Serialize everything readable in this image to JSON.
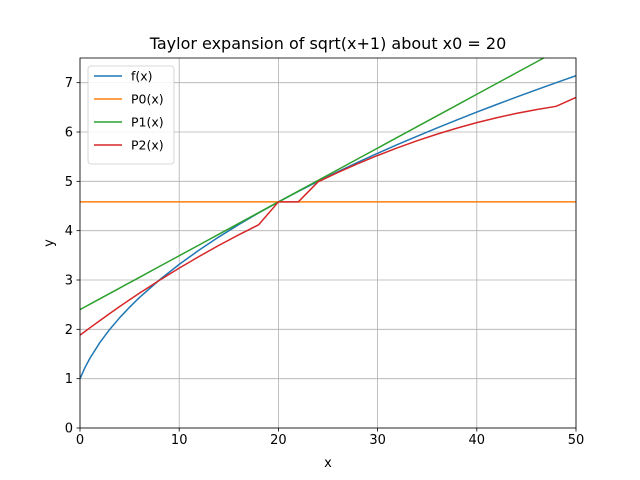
{
  "chart_data": {
    "type": "line",
    "title": "Taylor expansion of sqrt(x+1) about x0 = 20",
    "xlabel": "x",
    "ylabel": "y",
    "xlim": [
      0,
      50
    ],
    "ylim": [
      0,
      7.5
    ],
    "x_ticks": [
      "0",
      "10",
      "20",
      "30",
      "40",
      "50"
    ],
    "y_ticks": [
      "0",
      "1",
      "2",
      "3",
      "4",
      "5",
      "6",
      "7"
    ],
    "grid": true,
    "legend_position": "upper-left",
    "x": [
      0,
      0.5,
      1,
      2,
      3,
      4,
      5,
      6,
      8,
      10,
      12,
      14,
      16,
      18,
      20,
      22,
      24,
      26,
      28,
      30,
      32,
      34,
      36,
      38,
      40,
      42,
      44,
      46,
      48,
      50
    ],
    "series": [
      {
        "name": "f(x)",
        "color": "#1f77b4",
        "values": [
          1.0,
          1.2247,
          1.4142,
          1.7321,
          2.0,
          2.2361,
          2.4495,
          2.6458,
          3.0,
          3.3166,
          3.6056,
          3.873,
          4.1231,
          4.3589,
          4.5826,
          4.7958,
          5.0,
          5.1962,
          5.3852,
          5.5678,
          5.7446,
          5.9161,
          6.0828,
          6.245,
          6.4031,
          6.5574,
          6.7082,
          6.8557,
          7.0,
          7.1414
        ]
      },
      {
        "name": "P0(x)",
        "color": "#ff7f0e",
        "values": [
          4.5826,
          4.5826,
          4.5826,
          4.5826,
          4.5826,
          4.5826,
          4.5826,
          4.5826,
          4.5826,
          4.5826,
          4.5826,
          4.5826,
          4.5826,
          4.5826,
          4.5826,
          4.5826,
          4.5826,
          4.5826,
          4.5826,
          4.5826,
          4.5826,
          4.5826,
          4.5826,
          4.5826,
          4.5826,
          4.5826,
          4.5826,
          4.5826,
          4.5826,
          4.5826
        ]
      },
      {
        "name": "P1(x)",
        "color": "#2ca02c",
        "values": [
          2.4004,
          2.4549,
          2.5095,
          2.6186,
          2.7277,
          2.8368,
          2.9459,
          3.055,
          3.2732,
          3.4915,
          3.7097,
          3.9279,
          4.1461,
          4.3643,
          4.5826,
          4.8008,
          5.019,
          5.2372,
          5.4554,
          5.6736,
          5.8919,
          6.1101,
          6.3283,
          6.5465,
          6.7647,
          6.9829,
          7.2012,
          7.4194,
          7.6376,
          7.8558
        ]
      },
      {
        "name": "P2(x)",
        "color": "#d62728",
        "values": [
          1.8808,
          1.9554,
          2.0308,
          2.1772,
          2.3214,
          2.4618,
          2.5992,
          2.7333,
          2.9927,
          3.2405,
          3.4771,
          3.7021,
          3.9158,
          4.1181,
          4.5826,
          4.5826,
          4.9906,
          5.1796,
          5.3572,
          5.5238,
          5.6792,
          5.8237,
          5.9567,
          6.0786,
          6.1894,
          6.2889,
          6.3773,
          6.4545,
          6.5205,
          6.7007
        ]
      }
    ]
  }
}
